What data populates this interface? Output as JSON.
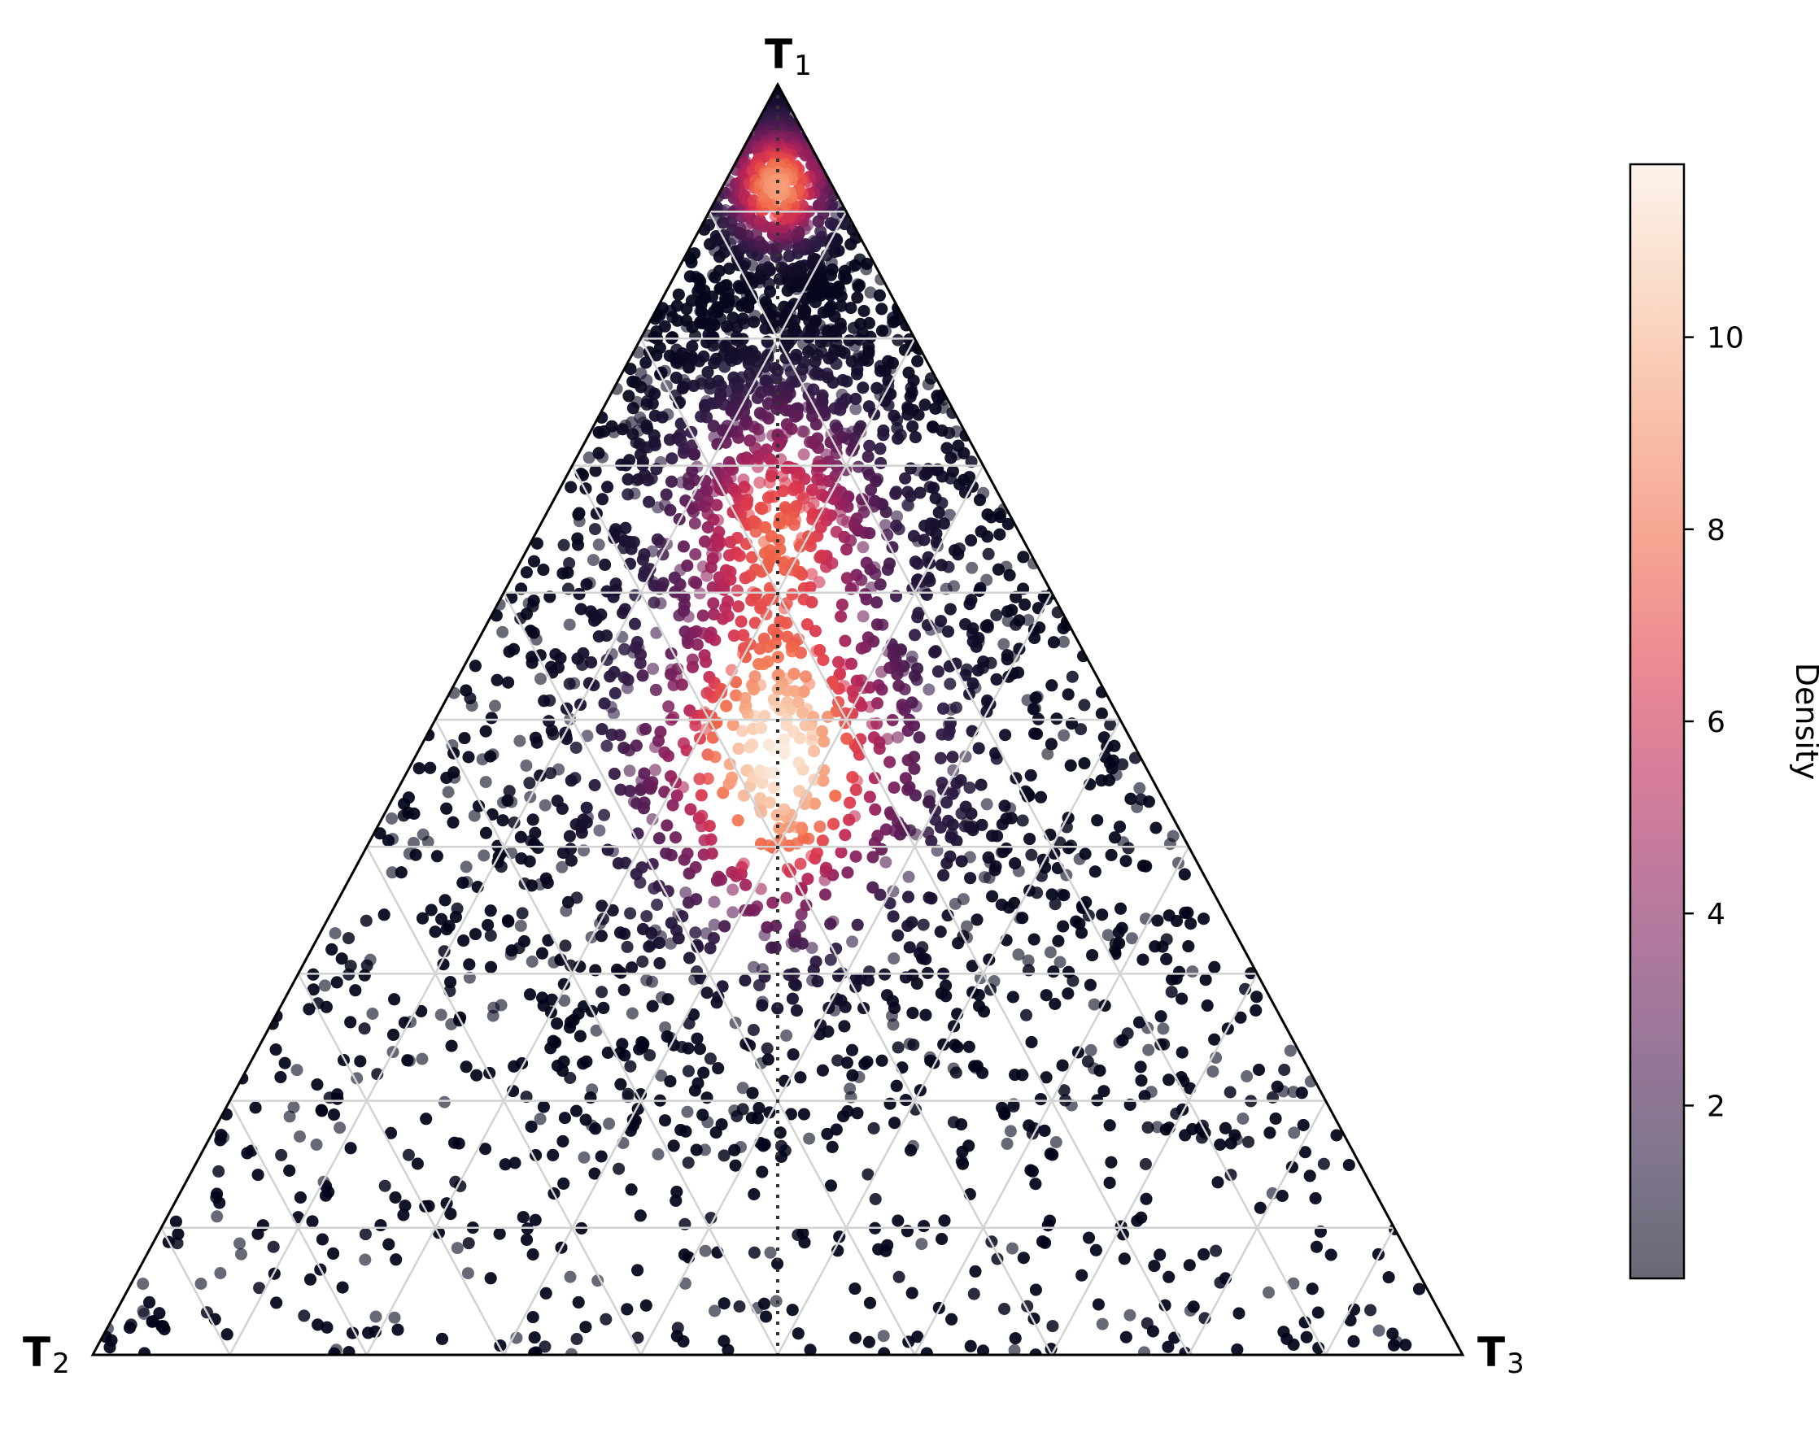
{
  "chart_data": {
    "type": "scatter",
    "subtype": "ternary-density",
    "title": "",
    "vertices": [
      {
        "main": "T",
        "sub": "1",
        "position": "top"
      },
      {
        "main": "T",
        "sub": "2",
        "position": "bottom-left"
      },
      {
        "main": "T",
        "sub": "3",
        "position": "bottom-right"
      }
    ],
    "grid": true,
    "grid_step": 0.1,
    "grid_color": "#d3d3d3",
    "reference_line": "T1 median (dotted, from T1 vertex to base midpoint)",
    "point_alpha": 0.6,
    "colormap": [
      "#03051a",
      "#2d1a43",
      "#5a1c55",
      "#87215e",
      "#b92558",
      "#e13d4b",
      "#f06a4a",
      "#f59873",
      "#f7c4a5",
      "#faebdd"
    ],
    "density_model": {
      "max_density": 11.8,
      "components": [
        {
          "t1": 0.47,
          "t2": 0.265,
          "t3": 0.265,
          "weight": 1.0
        },
        {
          "t1": 0.65,
          "t2": 0.175,
          "t3": 0.175,
          "weight": 0.55
        },
        {
          "t1": 0.92,
          "t2": 0.04,
          "t3": 0.04,
          "weight": 0.75
        }
      ]
    },
    "colorbar": {
      "label": "Density",
      "min": 0.2,
      "max": 11.8,
      "ticks": [
        2,
        4,
        6,
        8,
        10
      ],
      "tick_labels": [
        "2",
        "4",
        "6",
        "8",
        "10"
      ]
    }
  }
}
